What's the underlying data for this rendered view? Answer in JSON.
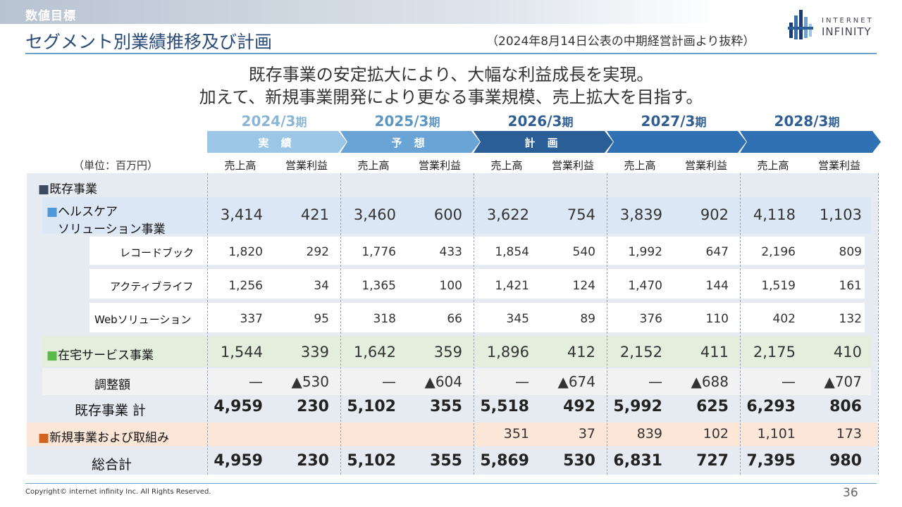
{
  "header": {
    "section_label": "数値目標",
    "title": "セグメント別業績推移及び計画",
    "note": "（2024年8月14日公表の中期経営計画より抜粋）",
    "logo_line1": "INTERNET",
    "logo_line2": "INFINITY"
  },
  "headline": {
    "line1": "既存事業の安定拡大により、大幅な利益成長を実現。",
    "line2": "加えて、新規事業開発により更なる事業規模、売上拡大を目指す。"
  },
  "years": [
    {
      "num": "2024/3",
      "suf": "期",
      "color": "#8ab6d6"
    },
    {
      "num": "2025/3",
      "suf": "期",
      "color": "#5b95c4"
    },
    {
      "num": "2026/3",
      "suf": "期",
      "color": "#2f5f92"
    },
    {
      "num": "2027/3",
      "suf": "期",
      "color": "#2f5f92"
    },
    {
      "num": "2028/3",
      "suf": "期",
      "color": "#2f5f92"
    }
  ],
  "phases": [
    {
      "label": "実 績",
      "color": "#9cc6e6"
    },
    {
      "label": "予 想",
      "color": "#6aa3d6"
    },
    {
      "label": "計 画",
      "color": "#2a5e97"
    },
    {
      "label": "",
      "color": "#2f71b3"
    },
    {
      "label": "",
      "color": "#2f71b3"
    }
  ],
  "unit_label": "（単位：百万円）",
  "col_headers": {
    "sales": "売上高",
    "profit": "営業利益"
  },
  "rows": {
    "existing_header": "■既存事業",
    "healthcare_l1": "■ヘルスケア",
    "healthcare_l2": "ソリューション事業",
    "recordbook": "レコードブック",
    "activelife": "アクティブライフ",
    "websolution": "Webソリューション",
    "homeservice": "■在宅サービス事業",
    "adjustment": "調整額",
    "existing_total": "既存事業 計",
    "new_business": "■新規事業および取組み",
    "grand_total": "総合計"
  },
  "data": {
    "healthcare": [
      [
        "3,414",
        "421"
      ],
      [
        "3,460",
        "600"
      ],
      [
        "3,622",
        "754"
      ],
      [
        "3,839",
        "902"
      ],
      [
        "4,118",
        "1,103"
      ]
    ],
    "recordbook": [
      [
        "1,820",
        "292"
      ],
      [
        "1,776",
        "433"
      ],
      [
        "1,854",
        "540"
      ],
      [
        "1,992",
        "647"
      ],
      [
        "2,196",
        "809"
      ]
    ],
    "activelife": [
      [
        "1,256",
        "34"
      ],
      [
        "1,365",
        "100"
      ],
      [
        "1,421",
        "124"
      ],
      [
        "1,470",
        "144"
      ],
      [
        "1,519",
        "161"
      ]
    ],
    "websolution": [
      [
        "337",
        "95"
      ],
      [
        "318",
        "66"
      ],
      [
        "345",
        "89"
      ],
      [
        "376",
        "110"
      ],
      [
        "402",
        "132"
      ]
    ],
    "homeservice": [
      [
        "1,544",
        "339"
      ],
      [
        "1,642",
        "359"
      ],
      [
        "1,896",
        "412"
      ],
      [
        "2,152",
        "411"
      ],
      [
        "2,175",
        "410"
      ]
    ],
    "adjustment": [
      [
        "—",
        "▲530"
      ],
      [
        "—",
        "▲604"
      ],
      [
        "—",
        "▲674"
      ],
      [
        "—",
        "▲688"
      ],
      [
        "—",
        "▲707"
      ]
    ],
    "existing_total": [
      [
        "4,959",
        "230"
      ],
      [
        "5,102",
        "355"
      ],
      [
        "5,518",
        "492"
      ],
      [
        "5,992",
        "625"
      ],
      [
        "6,293",
        "806"
      ]
    ],
    "new_business": [
      [
        "",
        ""
      ],
      [
        "",
        ""
      ],
      [
        "351",
        "37"
      ],
      [
        "839",
        "102"
      ],
      [
        "1,101",
        "173"
      ]
    ],
    "grand_total": [
      [
        "4,959",
        "230"
      ],
      [
        "5,102",
        "355"
      ],
      [
        "5,869",
        "530"
      ],
      [
        "6,831",
        "727"
      ],
      [
        "7,395",
        "980"
      ]
    ]
  },
  "colors": {
    "title": "#2a4a78",
    "healthcare_band": "#dbe7f4",
    "homeservice_band": "#e3efdc",
    "new_business_band": "#fbe6d8",
    "healthcare_marker": "#4f97d6",
    "homeservice_marker": "#5bb84a",
    "new_marker": "#d3641d",
    "existing_marker": "#3b4a5c"
  },
  "footer": {
    "copyright": "Copyright© internet infinity Inc. All Rights Reserved.",
    "page_number": "36"
  }
}
